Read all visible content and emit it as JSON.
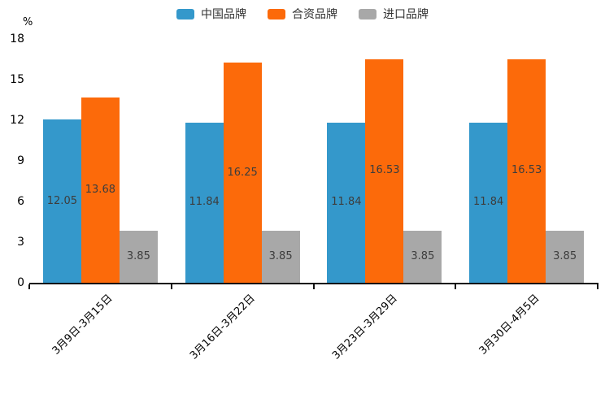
{
  "chart_data": {
    "type": "bar",
    "title": "",
    "xlabel": "",
    "ylabel": "%",
    "categories": [
      "3月9日-3月15日",
      "3月16日-3月22日",
      "3月23日-3月29日",
      "3月30日-4月5日"
    ],
    "series": [
      {
        "name": "中国品牌",
        "color": "#3498cb",
        "values": [
          12.05,
          11.84,
          11.84,
          11.84
        ]
      },
      {
        "name": "合资品牌",
        "color": "#fc6a0a",
        "values": [
          13.68,
          16.25,
          16.53,
          16.53
        ]
      },
      {
        "name": "进口品牌",
        "color": "#a8a8a8",
        "values": [
          3.85,
          3.85,
          3.85,
          3.85
        ]
      }
    ],
    "ylim": [
      0,
      18
    ],
    "yticks": [
      0,
      3,
      6,
      9,
      12,
      15,
      18
    ],
    "grid": false,
    "legend_position": "top",
    "value_labels": true,
    "value_label_position": "inside-center",
    "x_label_rotation": 45
  },
  "colors": {
    "axis": "#111111",
    "value_label_text": "#3d3d3d",
    "tick_text": "#000000",
    "legend_text": "#333333",
    "background": "#ffffff"
  }
}
